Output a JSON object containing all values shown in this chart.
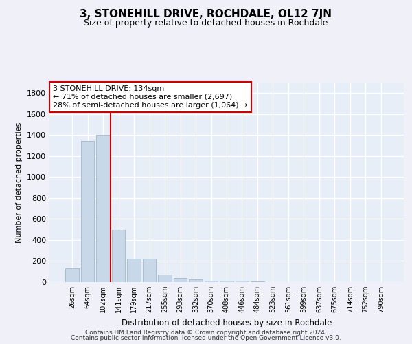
{
  "title": "3, STONEHILL DRIVE, ROCHDALE, OL12 7JN",
  "subtitle": "Size of property relative to detached houses in Rochdale",
  "xlabel": "Distribution of detached houses by size in Rochdale",
  "ylabel": "Number of detached properties",
  "bar_color": "#c8d8e8",
  "bar_edge_color": "#a0b8cc",
  "background_color": "#e8eef8",
  "grid_color": "#ffffff",
  "categories": [
    "26sqm",
    "64sqm",
    "102sqm",
    "141sqm",
    "179sqm",
    "217sqm",
    "255sqm",
    "293sqm",
    "332sqm",
    "370sqm",
    "408sqm",
    "446sqm",
    "484sqm",
    "523sqm",
    "561sqm",
    "599sqm",
    "637sqm",
    "675sqm",
    "714sqm",
    "752sqm",
    "790sqm"
  ],
  "values": [
    130,
    1340,
    1400,
    500,
    225,
    225,
    75,
    40,
    25,
    15,
    15,
    10,
    5,
    0,
    0,
    0,
    0,
    0,
    0,
    0,
    0
  ],
  "property_line_x": 2.5,
  "property_line_color": "#cc0000",
  "annotation_box_text": "3 STONEHILL DRIVE: 134sqm\n← 71% of detached houses are smaller (2,697)\n28% of semi-detached houses are larger (1,064) →",
  "ylim": [
    0,
    1900
  ],
  "yticks": [
    0,
    200,
    400,
    600,
    800,
    1000,
    1200,
    1400,
    1600,
    1800
  ],
  "footer_line1": "Contains HM Land Registry data © Crown copyright and database right 2024.",
  "footer_line2": "Contains public sector information licensed under the Open Government Licence v3.0."
}
